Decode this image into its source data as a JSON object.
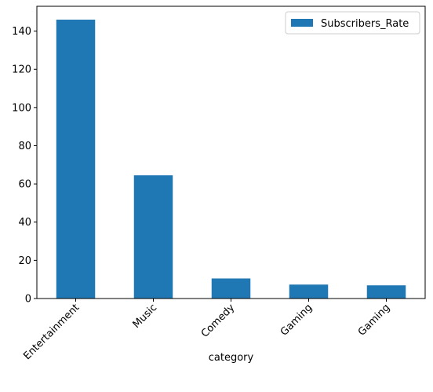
{
  "chart_data": {
    "type": "bar",
    "title": "",
    "xlabel": "category",
    "ylabel": "",
    "categories": [
      "Entertainment",
      "Music",
      "Comedy",
      "Gaming",
      "Gaming"
    ],
    "series": [
      {
        "name": "Subscribers_Rate",
        "values": [
          146,
          64.5,
          10.5,
          7.3,
          6.9
        ],
        "color": "#1f77b4"
      }
    ],
    "ylim": [
      0,
      153
    ],
    "yticks": [
      0,
      20,
      40,
      60,
      80,
      100,
      120,
      140
    ],
    "grid": false,
    "legend_position": "top-right",
    "x_tick_rotation": -45
  }
}
